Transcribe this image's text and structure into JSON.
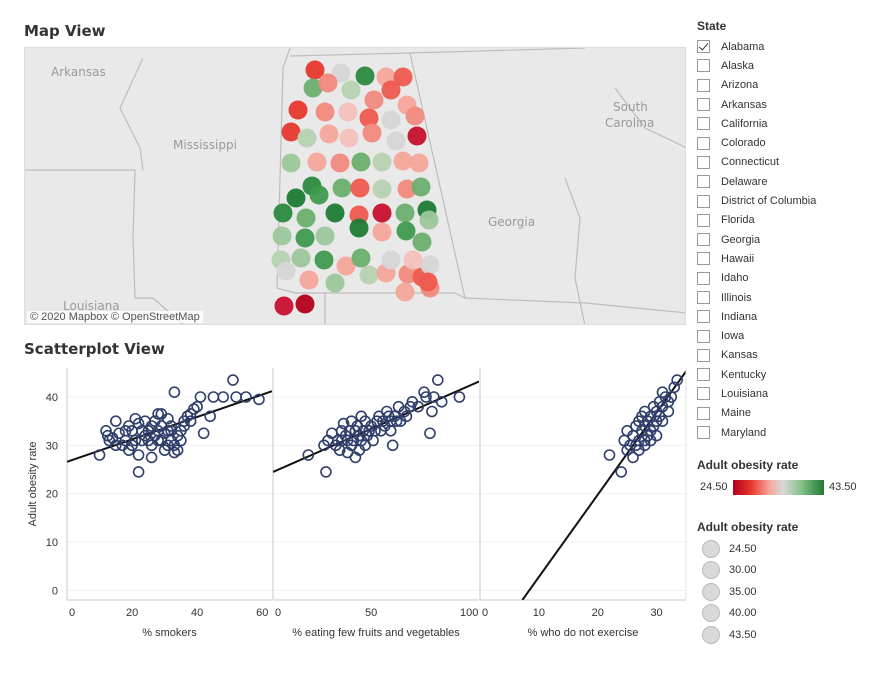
{
  "map_view": {
    "title": "Map View",
    "attribution": "© 2020 Mapbox  © OpenStreetMap",
    "labels": [
      "Arkansas",
      "Mississippi",
      "Louisiana",
      "Georgia",
      "South",
      "Carolina"
    ]
  },
  "scatter_view": {
    "title": "Scatterplot View"
  },
  "state_filter": {
    "title": "State",
    "items": [
      {
        "label": "Alabama",
        "checked": true
      },
      {
        "label": "Alaska",
        "checked": false
      },
      {
        "label": "Arizona",
        "checked": false
      },
      {
        "label": "Arkansas",
        "checked": false
      },
      {
        "label": "California",
        "checked": false
      },
      {
        "label": "Colorado",
        "checked": false
      },
      {
        "label": "Connecticut",
        "checked": false
      },
      {
        "label": "Delaware",
        "checked": false
      },
      {
        "label": "District of Columbia",
        "checked": false
      },
      {
        "label": "Florida",
        "checked": false
      },
      {
        "label": "Georgia",
        "checked": false
      },
      {
        "label": "Hawaii",
        "checked": false
      },
      {
        "label": "Idaho",
        "checked": false
      },
      {
        "label": "Illinois",
        "checked": false
      },
      {
        "label": "Indiana",
        "checked": false
      },
      {
        "label": "Iowa",
        "checked": false
      },
      {
        "label": "Kansas",
        "checked": false
      },
      {
        "label": "Kentucky",
        "checked": false
      },
      {
        "label": "Louisiana",
        "checked": false
      },
      {
        "label": "Maine",
        "checked": false
      },
      {
        "label": "Maryland",
        "checked": false
      }
    ]
  },
  "color_legend": {
    "title": "Adult obesity rate",
    "min_label": "24.50",
    "max_label": "43.50",
    "colors": {
      "low": "#b4001a",
      "mid": "#d8d8d8",
      "high": "#1e7b34"
    }
  },
  "size_legend": {
    "title": "Adult obesity rate",
    "items": [
      "24.50",
      "30.00",
      "35.00",
      "40.00",
      "43.50"
    ]
  },
  "chart_data": {
    "type": "scatter",
    "ylabel": "Adult obesity rate",
    "ylim": [
      -2,
      46
    ],
    "yticks": [
      0,
      10,
      20,
      30,
      40
    ],
    "point_color": "#2f3e6b",
    "panels": [
      {
        "xlabel": "% smokers",
        "xlim": [
          0,
          63
        ],
        "xticks": [
          0,
          20,
          40,
          60
        ],
        "trend": {
          "x0": 0,
          "y0": 26.6,
          "x1": 63,
          "y1": 41.2
        },
        "points": [
          [
            10,
            28
          ],
          [
            12,
            33
          ],
          [
            12.5,
            32
          ],
          [
            13,
            31
          ],
          [
            14,
            31.5
          ],
          [
            15,
            35
          ],
          [
            15,
            30
          ],
          [
            16,
            32.5
          ],
          [
            17,
            30
          ],
          [
            18,
            33
          ],
          [
            18,
            31
          ],
          [
            19,
            29
          ],
          [
            19,
            34
          ],
          [
            20,
            33
          ],
          [
            20,
            30
          ],
          [
            21,
            31
          ],
          [
            21,
            35.5
          ],
          [
            22,
            28
          ],
          [
            22,
            34.5
          ],
          [
            22,
            24.5
          ],
          [
            23,
            31
          ],
          [
            23,
            33
          ],
          [
            24,
            35
          ],
          [
            24,
            32
          ],
          [
            25,
            33
          ],
          [
            25,
            31
          ],
          [
            26,
            30
          ],
          [
            26,
            34
          ],
          [
            26,
            27.5
          ],
          [
            27,
            35
          ],
          [
            27,
            32
          ],
          [
            28,
            31
          ],
          [
            28,
            36.5
          ],
          [
            28,
            33
          ],
          [
            29,
            34
          ],
          [
            29,
            31
          ],
          [
            29,
            36.5
          ],
          [
            30,
            29
          ],
          [
            30,
            32.5
          ],
          [
            31,
            33
          ],
          [
            31,
            30
          ],
          [
            31,
            35.5
          ],
          [
            32,
            33
          ],
          [
            32,
            31
          ],
          [
            32,
            34
          ],
          [
            33,
            30
          ],
          [
            33,
            28.5
          ],
          [
            33,
            41
          ],
          [
            34,
            32
          ],
          [
            34,
            29
          ],
          [
            35,
            33
          ],
          [
            35,
            31
          ],
          [
            36,
            35
          ],
          [
            36,
            34
          ],
          [
            37,
            36
          ],
          [
            38,
            36.5
          ],
          [
            38,
            35
          ],
          [
            39,
            37.5
          ],
          [
            40,
            38
          ],
          [
            41,
            40
          ],
          [
            42,
            32.5
          ],
          [
            44,
            36
          ],
          [
            45,
            40
          ],
          [
            48,
            40
          ],
          [
            51,
            43.5
          ],
          [
            52,
            40
          ],
          [
            55,
            40
          ],
          [
            59,
            39.5
          ]
        ]
      },
      {
        "xlabel": "% eating few fruits and vegetables",
        "xlim": [
          0,
          105
        ],
        "xticks": [
          0,
          50,
          100
        ],
        "trend": {
          "x0": 0,
          "y0": 24.5,
          "x1": 105,
          "y1": 43.2
        },
        "points": [
          [
            18,
            28
          ],
          [
            26,
            30
          ],
          [
            27,
            24.5
          ],
          [
            28,
            31
          ],
          [
            30,
            32.5
          ],
          [
            32,
            30
          ],
          [
            33,
            31
          ],
          [
            34,
            29
          ],
          [
            35,
            33
          ],
          [
            35,
            31
          ],
          [
            36,
            34.5
          ],
          [
            37,
            32
          ],
          [
            38,
            28.5
          ],
          [
            38,
            31
          ],
          [
            39,
            33
          ],
          [
            40,
            35
          ],
          [
            40,
            30
          ],
          [
            41,
            31
          ],
          [
            42,
            27.5
          ],
          [
            42,
            33
          ],
          [
            43,
            34
          ],
          [
            44,
            29
          ],
          [
            44,
            32
          ],
          [
            45,
            36
          ],
          [
            45,
            31
          ],
          [
            46,
            33
          ],
          [
            47,
            30
          ],
          [
            47,
            35
          ],
          [
            48,
            32
          ],
          [
            49,
            33
          ],
          [
            50,
            34
          ],
          [
            51,
            31
          ],
          [
            52,
            33
          ],
          [
            53,
            35
          ],
          [
            54,
            36
          ],
          [
            55,
            33
          ],
          [
            56,
            35
          ],
          [
            57,
            34
          ],
          [
            58,
            37
          ],
          [
            59,
            36
          ],
          [
            60,
            35
          ],
          [
            60,
            33
          ],
          [
            61,
            30
          ],
          [
            62,
            36
          ],
          [
            63,
            35
          ],
          [
            64,
            38
          ],
          [
            65,
            35
          ],
          [
            67,
            37
          ],
          [
            68,
            36
          ],
          [
            70,
            38
          ],
          [
            71,
            39
          ],
          [
            74,
            38
          ],
          [
            77,
            41
          ],
          [
            78,
            40
          ],
          [
            80,
            32.5
          ],
          [
            81,
            37
          ],
          [
            82,
            40
          ],
          [
            84,
            43.5
          ],
          [
            86,
            39
          ],
          [
            95,
            40
          ]
        ]
      },
      {
        "xlabel": "% who do not exercise",
        "xlim": [
          0,
          35
        ],
        "xticks": [
          0,
          10,
          20,
          30
        ],
        "trend": {
          "x0": 7.2,
          "y0": -2,
          "x1": 35,
          "y1": 45.3
        },
        "points": [
          [
            22,
            28
          ],
          [
            24,
            24.5
          ],
          [
            24.5,
            31
          ],
          [
            25,
            29
          ],
          [
            25,
            33
          ],
          [
            25.5,
            30
          ],
          [
            26,
            32
          ],
          [
            26,
            27.5
          ],
          [
            26.5,
            34
          ],
          [
            26.5,
            30
          ],
          [
            27,
            31
          ],
          [
            27,
            35
          ],
          [
            27,
            29
          ],
          [
            27.5,
            33
          ],
          [
            27.5,
            36
          ],
          [
            28,
            31
          ],
          [
            28,
            34
          ],
          [
            28,
            30
          ],
          [
            28,
            37
          ],
          [
            28.5,
            35
          ],
          [
            28.5,
            32
          ],
          [
            29,
            33
          ],
          [
            29,
            36
          ],
          [
            29,
            31
          ],
          [
            29.5,
            34
          ],
          [
            29.5,
            38
          ],
          [
            30,
            35
          ],
          [
            30,
            32
          ],
          [
            30,
            37
          ],
          [
            30.5,
            39
          ],
          [
            30.5,
            36
          ],
          [
            31,
            38
          ],
          [
            31,
            41
          ],
          [
            31.5,
            40
          ],
          [
            32,
            39
          ],
          [
            32.5,
            40
          ],
          [
            33,
            42
          ],
          [
            33.5,
            43.5
          ],
          [
            32,
            37
          ],
          [
            31,
            35
          ]
        ]
      }
    ]
  }
}
